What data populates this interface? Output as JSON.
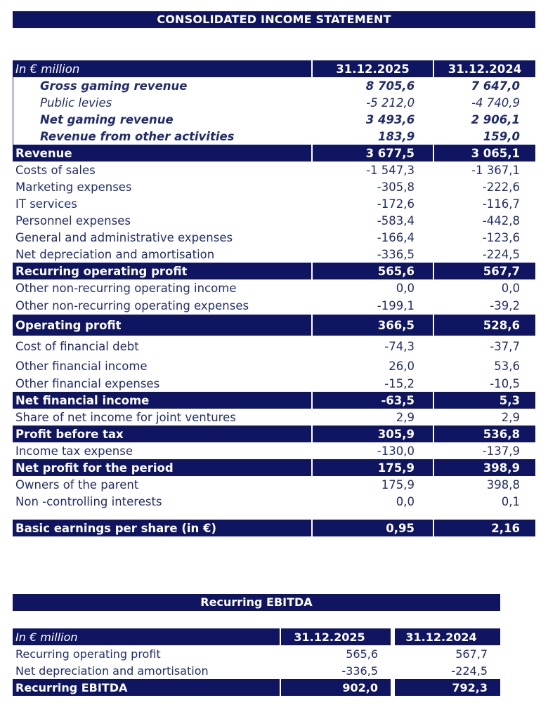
{
  "title": "CONSOLIDATED INCOME STATEMENT",
  "statement": {
    "header": {
      "label": "In € million",
      "col1": "31.12.2025",
      "col2": "31.12.2024"
    },
    "sub_rows": [
      {
        "label": "Gross gaming revenue",
        "v1": "8 705,6",
        "v2": "7 647,0",
        "bold": true
      },
      {
        "label": "Public levies",
        "v1": "-5 212,0",
        "v2": "-4 740,9",
        "bold": false
      },
      {
        "label": "Net gaming revenue",
        "v1": "3 493,6",
        "v2": "2 906,1",
        "bold": true
      },
      {
        "label": "Revenue from other activities",
        "v1": "183,9",
        "v2": "159,0",
        "bold": true
      }
    ],
    "rows": [
      {
        "label": "Revenue",
        "v1": "3 677,5",
        "v2": "3 065,1",
        "total": true
      },
      {
        "label": "Costs of sales",
        "v1": "-1 547,3",
        "v2": "-1 367,1"
      },
      {
        "label": "Marketing expenses",
        "v1": "-305,8",
        "v2": "-222,6"
      },
      {
        "label": "IT services",
        "v1": "-172,6",
        "v2": "-116,7"
      },
      {
        "label": "Personnel expenses",
        "v1": "-583,4",
        "v2": "-442,8"
      },
      {
        "label": "General and administrative expenses",
        "v1": "-166,4",
        "v2": "-123,6"
      },
      {
        "label": "Net depreciation and amortisation",
        "v1": "-336,5",
        "v2": "-224,5"
      },
      {
        "label": "Recurring operating profit",
        "v1": "565,6",
        "v2": "567,7",
        "total": true
      },
      {
        "label": "Other non-recurring operating income",
        "v1": "0,0",
        "v2": "0,0"
      },
      {
        "label": "Other non-recurring operating expenses",
        "v1": "-199,1",
        "v2": "-39,2",
        "tall": true
      },
      {
        "label": "Operating profit",
        "v1": "366,5",
        "v2": "528,6",
        "total": true,
        "xtall": true
      },
      {
        "label": "Cost of financial debt",
        "v1": "-74,3",
        "v2": "-37,7",
        "xtall": true
      },
      {
        "label": "Other financial income",
        "v1": "26,0",
        "v2": "53,6",
        "tall": true
      },
      {
        "label": "Other financial expenses",
        "v1": "-15,2",
        "v2": "-10,5"
      },
      {
        "label": "Net financial income",
        "v1": "-63,5",
        "v2": "5,3",
        "total": true
      },
      {
        "label": "Share of net income for joint ventures",
        "v1": "2,9",
        "v2": "2,9"
      },
      {
        "label": "Profit before tax",
        "v1": "305,9",
        "v2": "536,8",
        "total": true
      },
      {
        "label": "Income tax expense",
        "v1": "-130,0",
        "v2": "-137,9"
      },
      {
        "label": "Net profit for the period",
        "v1": "175,9",
        "v2": "398,9",
        "total": true
      },
      {
        "label": "Owners of the parent",
        "v1": "175,9",
        "v2": "398,8"
      },
      {
        "label": "Non -controlling interests",
        "v1": "0,0",
        "v2": "0,1"
      }
    ],
    "eps": {
      "label": "Basic earnings per share (in €)",
      "v1": "0,95",
      "v2": "2,16"
    }
  },
  "ebitda": {
    "title": "Recurring EBITDA",
    "header": {
      "label": "In € million",
      "col1": "31.12.2025",
      "col2": "31.12.2024"
    },
    "rows": [
      {
        "label": "Recurring operating profit",
        "v1": "565,6",
        "v2": "567,7"
      },
      {
        "label": "Net depreciation and amortisation",
        "v1": "-336,5",
        "v2": "-224,5"
      },
      {
        "label": "Recurring EBITDA",
        "v1": "902,0",
        "v2": "792,3",
        "total": true
      }
    ]
  }
}
